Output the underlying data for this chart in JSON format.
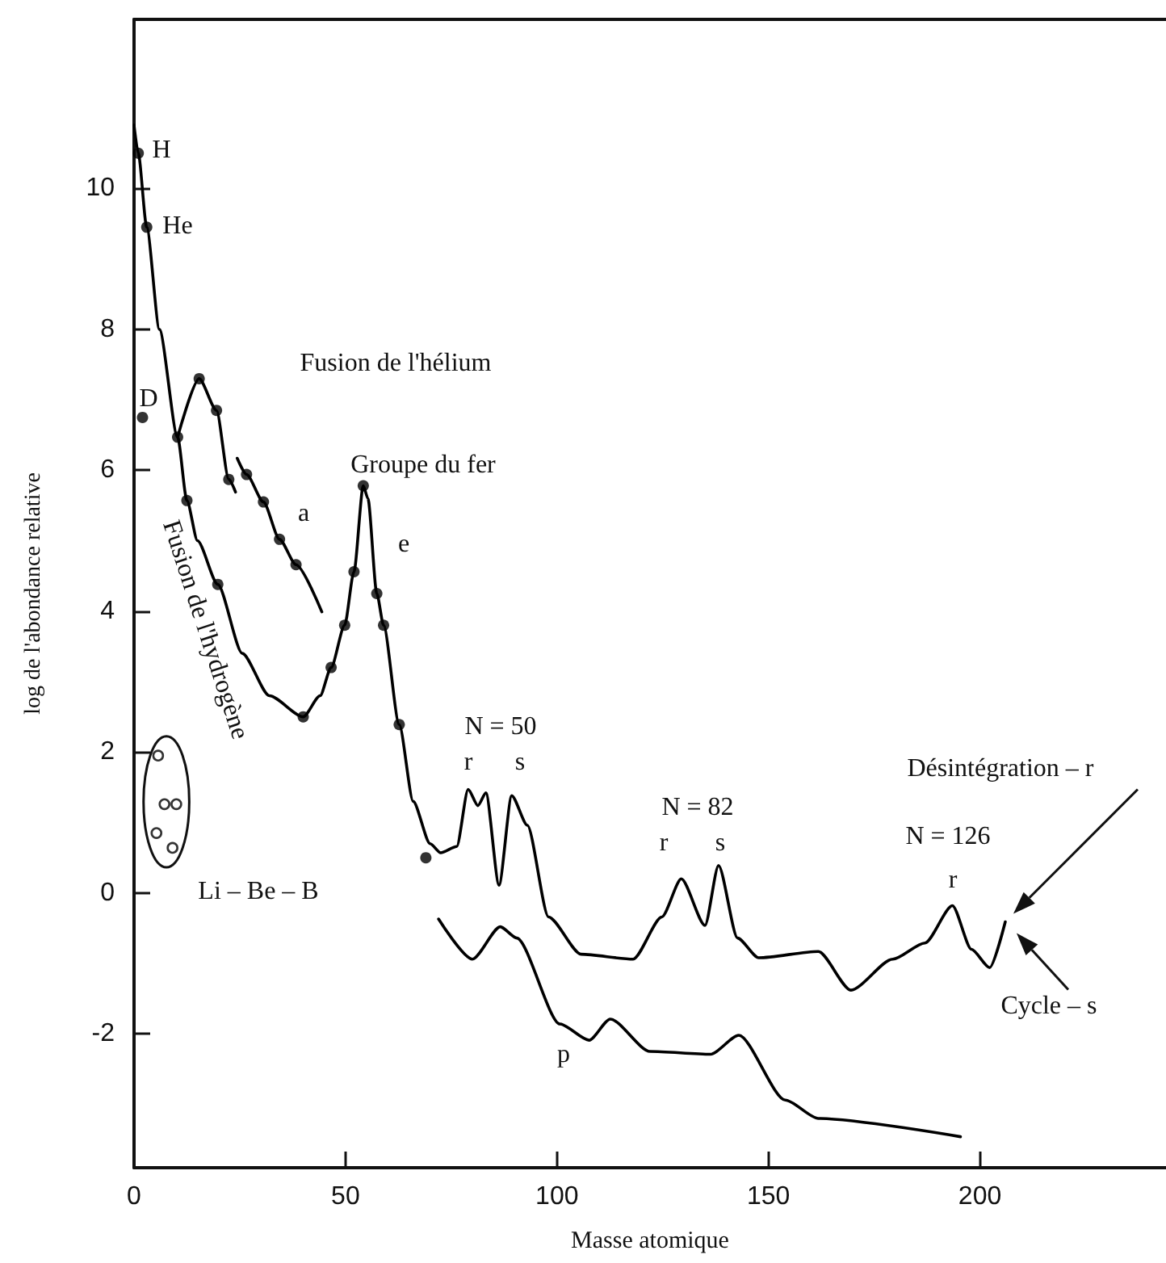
{
  "chart_data": {
    "type": "line",
    "xlabel": "Masse atomique",
    "ylabel": "log de l'abondance relative",
    "xlim": [
      0,
      244
    ],
    "ylim": [
      -3.9,
      12.4
    ],
    "xticks": [
      0,
      50,
      100,
      150,
      200
    ],
    "yticks": [
      -2,
      0,
      2,
      4,
      6,
      8,
      10
    ],
    "grid": false,
    "marker": "none",
    "line_style": "solid",
    "series": [
      {
        "color": "#000000",
        "x": [
          0,
          1,
          3,
          6,
          10.3,
          12.5,
          15,
          19.8,
          25.6,
          32,
          40,
          44,
          46.6,
          49.8,
          52,
          54.2,
          55.3,
          57.4,
          59,
          62.7,
          66,
          70,
          72.5,
          76.3,
          79,
          81.3,
          83.2,
          86.3,
          89.3,
          93,
          98,
          105.7,
          118,
          124.8,
          129.4,
          135,
          138.2,
          142.7,
          147.7,
          161.8,
          169.5,
          179.4,
          187,
          193.5,
          198,
          202.3,
          206
        ],
        "values": [
          10.9,
          10.5,
          9.45,
          8.0,
          6.47,
          5.57,
          5.0,
          4.38,
          3.4,
          2.8,
          2.5,
          2.8,
          3.2,
          3.8,
          4.56,
          5.78,
          5.6,
          4.25,
          3.8,
          2.39,
          1.3,
          0.7,
          0.57,
          0.66,
          1.47,
          1.24,
          1.42,
          0.11,
          1.38,
          0.96,
          -0.34,
          -0.87,
          -0.94,
          -0.34,
          0.2,
          -0.46,
          0.39,
          -0.64,
          -0.92,
          -0.83,
          -1.38,
          -0.94,
          -0.71,
          -0.18,
          -0.8,
          -1.06,
          -0.41
        ]
      },
      {
        "color": "#000000",
        "x": [
          10.3,
          15.4,
          19.5,
          22.4,
          24,
          24.2,
          24.4,
          26.6,
          30.6,
          34.4,
          38.3,
          44.4
        ],
        "values": [
          6.47,
          7.3,
          6.85,
          5.87,
          5.69,
          null,
          6.17,
          5.94,
          5.55,
          5.02,
          4.66,
          3.99
        ]
      },
      {
        "color": "#000000",
        "x": [
          72,
          80,
          86.6,
          90.5,
          100.7,
          107.6,
          112.6,
          122,
          136.3,
          143,
          154,
          161.8,
          195.4
        ],
        "values": [
          -0.37,
          -0.94,
          -0.48,
          -0.64,
          -1.86,
          -2.09,
          -1.79,
          -2.25,
          -2.29,
          -2.02,
          -2.94,
          -3.2,
          -3.46
        ]
      },
      {
        "type": "scatter",
        "marker": "circle",
        "color": "#000000",
        "x": [
          1,
          3,
          2,
          10.3,
          12.5,
          19.8,
          40,
          46.6,
          49.8,
          52,
          54.2,
          57.4,
          59,
          62.7,
          69,
          15.4,
          19.5,
          22.4,
          26.6,
          30.6,
          34.4,
          38.3
        ],
        "values": [
          10.5,
          9.45,
          6.75,
          6.47,
          5.57,
          4.38,
          2.5,
          3.2,
          3.8,
          4.56,
          5.78,
          4.25,
          3.8,
          2.39,
          0.5,
          7.3,
          6.85,
          5.87,
          5.94,
          5.55,
          5.02,
          4.66
        ]
      },
      {
        "type": "scatter",
        "marker": "circle",
        "color": "#000000",
        "x": [
          5.7,
          7.2,
          10,
          5.3,
          9.1
        ],
        "values": [
          1.95,
          1.26,
          1.26,
          0.85,
          0.64
        ]
      }
    ],
    "annotations": [
      "H",
      "He",
      "D",
      "Fusion de l'hélium",
      "Groupe du fer",
      "a",
      "e",
      "Fusion de l'hydrogène",
      "Li – Be – B",
      "N = 50",
      "r",
      "s",
      "N = 82",
      "r",
      "s",
      "N = 126",
      "r",
      "p",
      "Désintégration – r",
      "Cycle – s"
    ]
  }
}
